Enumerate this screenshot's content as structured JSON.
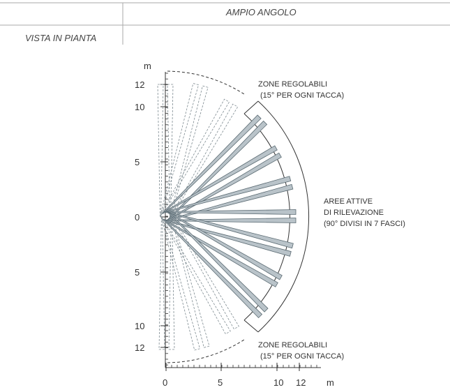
{
  "header": {
    "title": "AMPIO ANGOLO"
  },
  "side": {
    "title": "VISTA IN PIANTA"
  },
  "diagram": {
    "y_unit": "m",
    "x_unit": "m",
    "y_ticks": [
      "12",
      "10",
      "5",
      "0",
      "5",
      "10",
      "12"
    ],
    "x_ticks": [
      "0",
      "5",
      "10",
      "12"
    ],
    "label_top": [
      "ZONE REGOLABILI",
      "(15° PER OGNI TACCA)"
    ],
    "label_active": [
      "AREE ATTIVE",
      "DI RILEVAZIONE",
      "(90° DIVISI IN 7 FASCI)"
    ],
    "label_bottom": [
      "ZONE REGOLABILI",
      "(15° PER OGNI TACCA)"
    ],
    "beam_color": "#b9c3c9",
    "beam_stroke": "#5a6a72",
    "active_angles_deg": [
      -45,
      -30,
      -15,
      0,
      15,
      30,
      45
    ],
    "adjustable_angles_deg": [
      -90,
      -75,
      -60,
      60,
      75,
      90
    ]
  }
}
